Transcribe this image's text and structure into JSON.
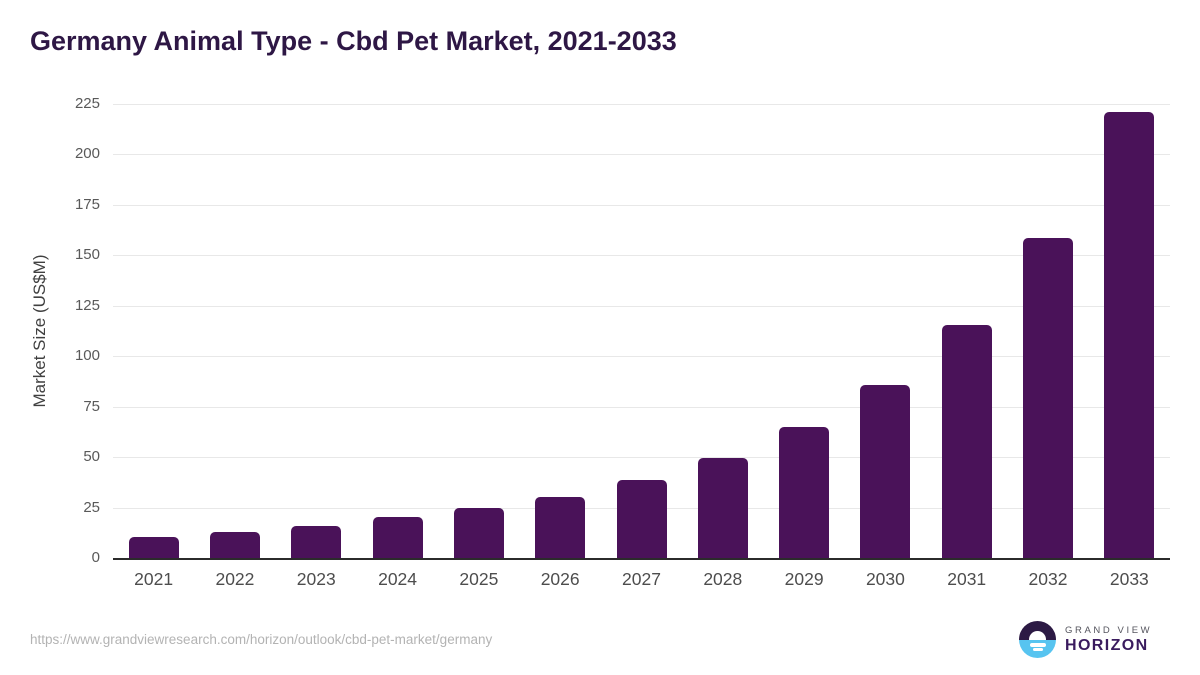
{
  "title": "Germany Animal Type - Cbd Pet Market, 2021-2033",
  "chart_data": {
    "type": "bar",
    "title": "Germany Animal Type - Cbd Pet Market, 2021-2033",
    "categories": [
      "2021",
      "2022",
      "2023",
      "2024",
      "2025",
      "2026",
      "2027",
      "2028",
      "2029",
      "2030",
      "2031",
      "2032",
      "2033"
    ],
    "values": [
      10.3,
      12.9,
      15.9,
      20.4,
      24.8,
      30.2,
      38.6,
      49.7,
      64.8,
      85.8,
      115.3,
      158.4,
      220.9
    ],
    "xlabel": "",
    "ylabel": "Market Size (US$M)",
    "ylim": [
      0,
      225
    ],
    "yticks": [
      0,
      25,
      50,
      75,
      100,
      125,
      150,
      175,
      200,
      225
    ],
    "grid": "horizontal-only",
    "legend": "none",
    "bar_color": "#4a1259"
  },
  "footer": {
    "source_url": "https://www.grandviewresearch.com/horizon/outlook/cbd-pet-market/germany",
    "logo": {
      "brand_line1": "GRAND VIEW",
      "brand_line2": "HORIZON"
    }
  },
  "colors": {
    "title_text": "#2e1745",
    "bar": "#4a1259",
    "y_tick_text": "#595959",
    "x_tick_text": "#4d4d4d",
    "gridline": "#e8e8e8",
    "axis_baseline": "#2b2b2b",
    "source_url_text": "#b3b3b3",
    "logo_dark": "#2c1a44",
    "logo_blue": "#57c4f0",
    "logo_grandview_text": "#55555e",
    "logo_horizon_text": "#3a1b5e"
  }
}
